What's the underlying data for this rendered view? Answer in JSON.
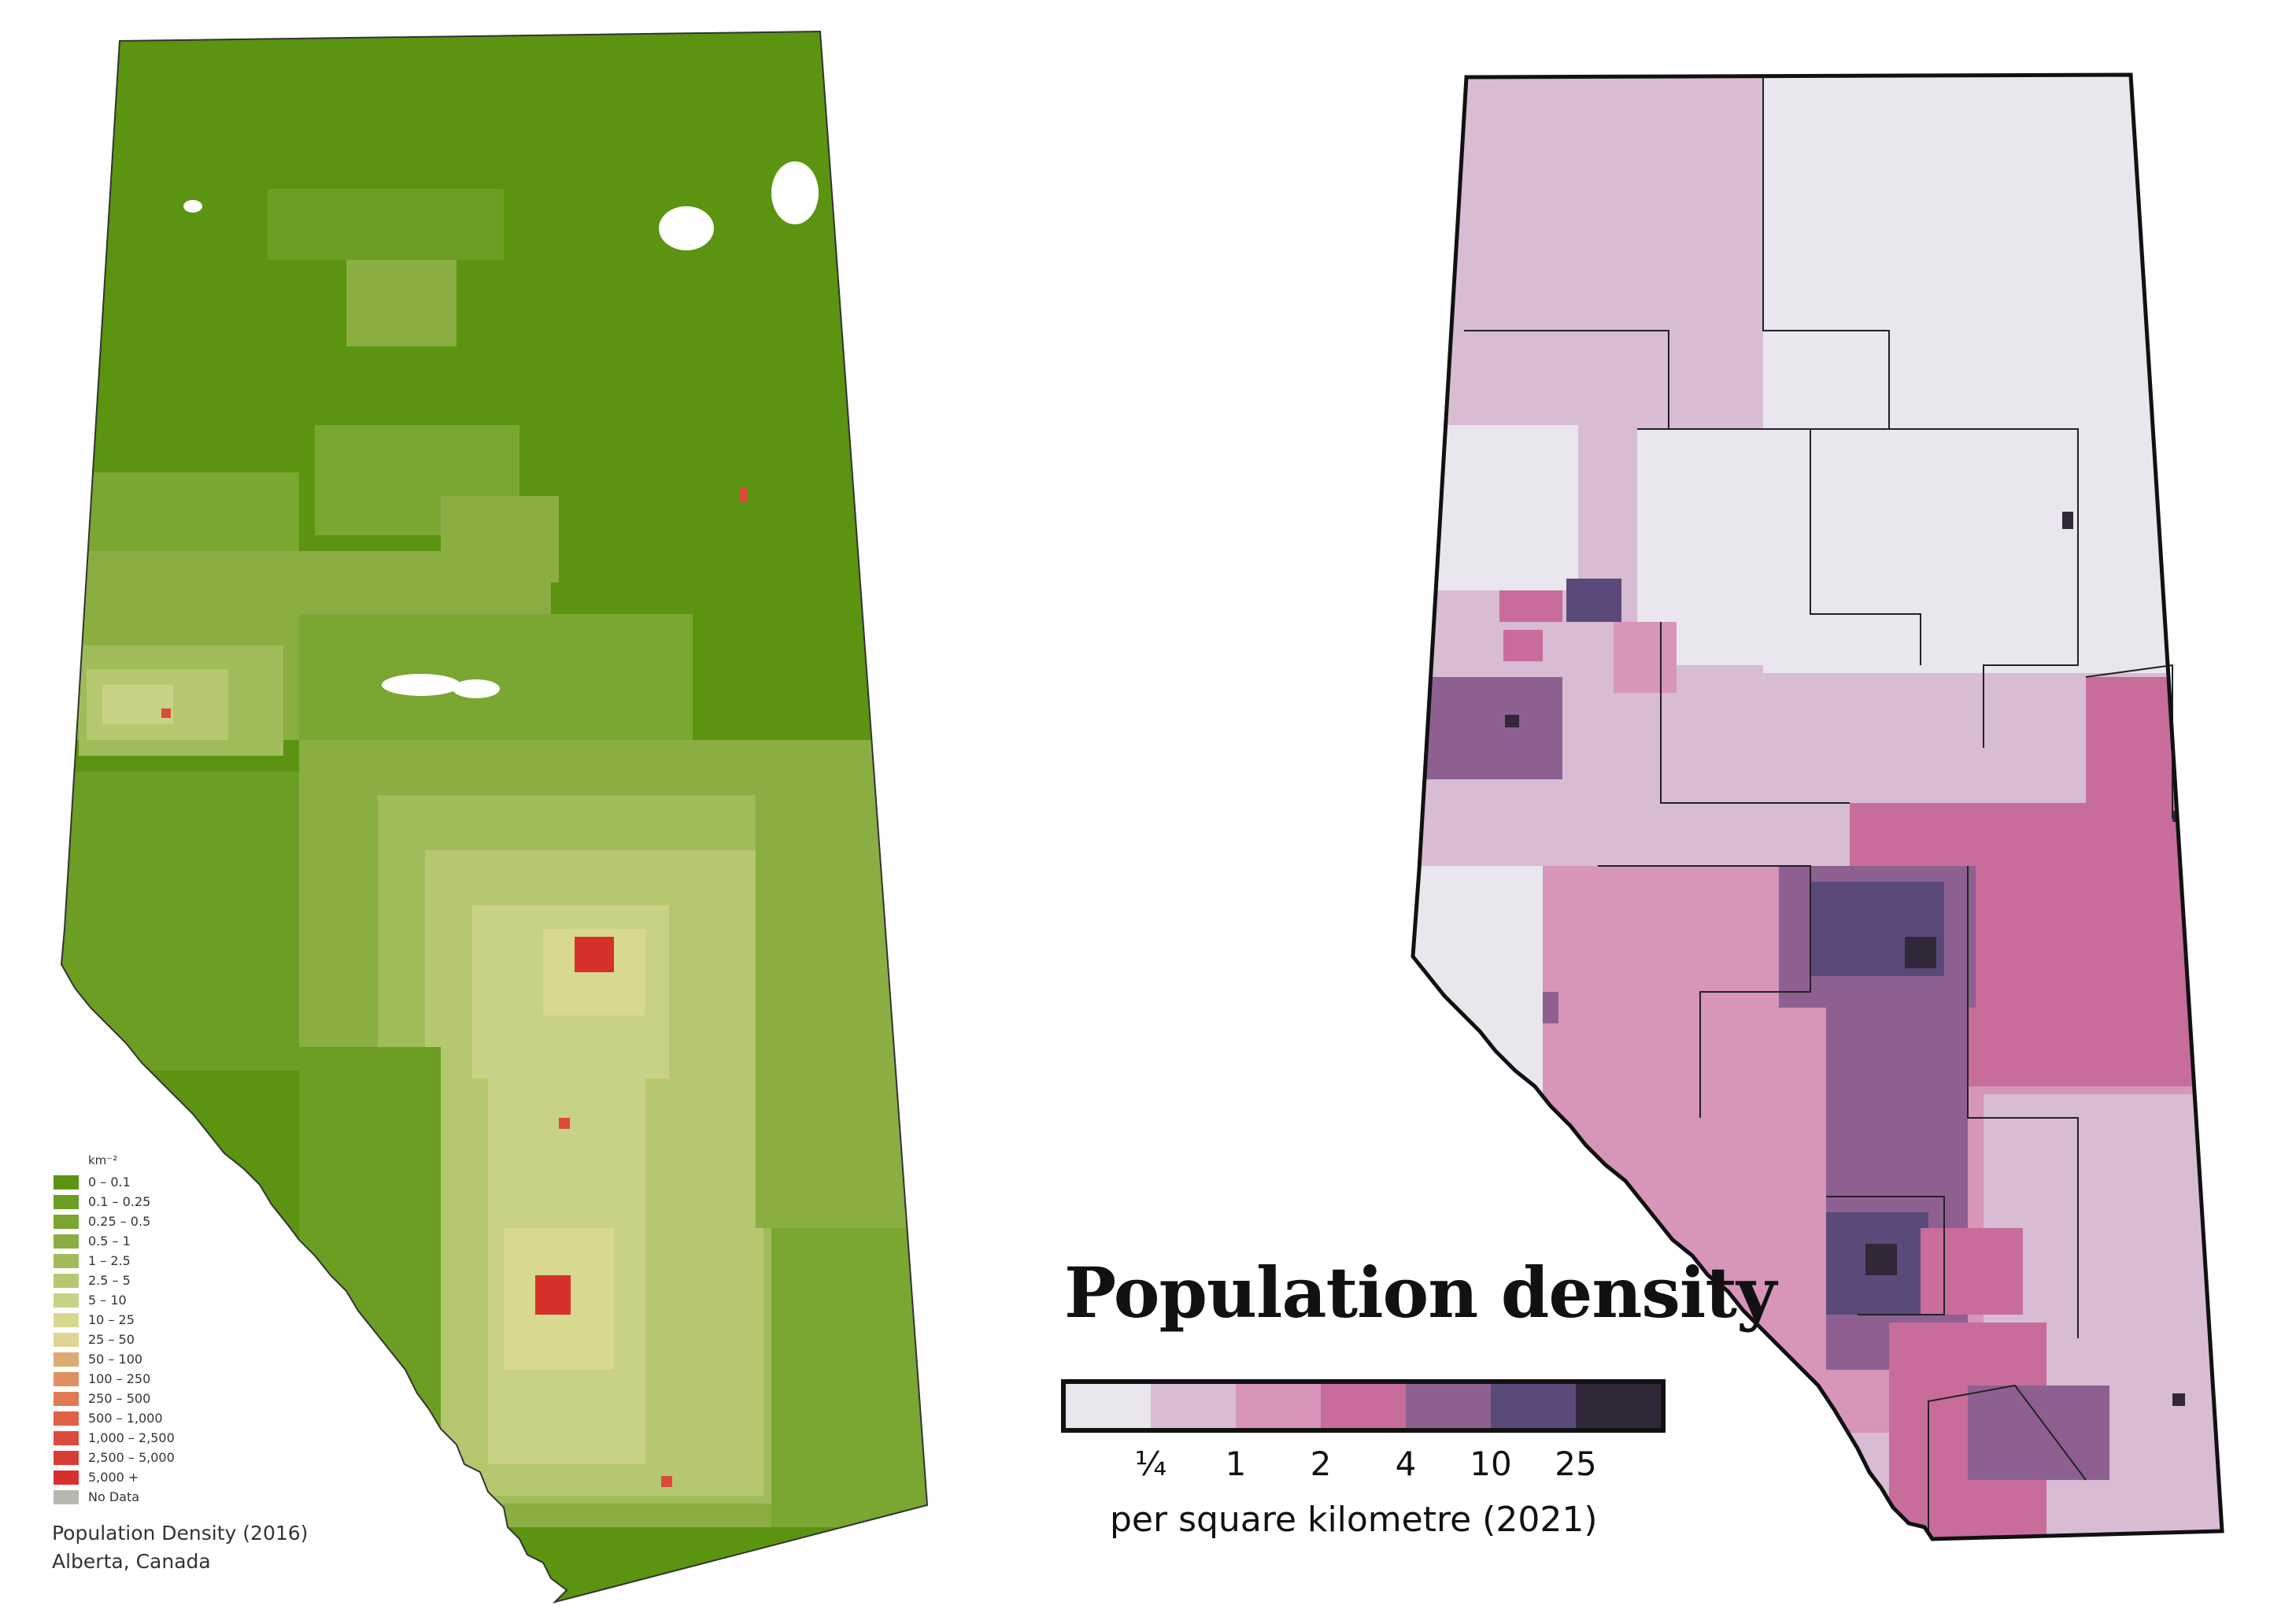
{
  "left_map": {
    "legend_unit": "km⁻²",
    "legend": [
      {
        "label": "0 – 0.1",
        "color": "#5a9410"
      },
      {
        "label": "0.1 – 0.25",
        "color": "#6b9e22"
      },
      {
        "label": "0.25 – 0.5",
        "color": "#7aa632"
      },
      {
        "label": "0.5 – 1",
        "color": "#8aae42"
      },
      {
        "label": "1 – 2.5",
        "color": "#a0bc5a"
      },
      {
        "label": "2.5 – 5",
        "color": "#b5c870"
      },
      {
        "label": "5 – 10",
        "color": "#c8d286"
      },
      {
        "label": "10 – 25",
        "color": "#d8d890"
      },
      {
        "label": "25 – 50",
        "color": "#e0d494"
      },
      {
        "label": "50 – 100",
        "color": "#dcaa72"
      },
      {
        "label": "100 – 250",
        "color": "#e0905e"
      },
      {
        "label": "250 – 500",
        "color": "#e27a52"
      },
      {
        "label": "500 – 1,000",
        "color": "#e06048"
      },
      {
        "label": "1,000 – 2,500",
        "color": "#dc4a3c"
      },
      {
        "label": "2,500 – 5,000",
        "color": "#d83c34"
      },
      {
        "label": "5,000 +",
        "color": "#d6302c"
      },
      {
        "label": "No Data",
        "color": "#b8b8b0"
      }
    ],
    "caption_line1": "Population Density (2016)",
    "caption_line2": "Alberta, Canada"
  },
  "right_map": {
    "title": "Population density",
    "scale_colors": [
      "#e9e6ee",
      "#d8bcd4",
      "#d695b9",
      "#c86c9c",
      "#8e6092",
      "#5a4a7a",
      "#302838"
    ],
    "tick_labels": [
      "¼",
      "1",
      "2",
      "4",
      "10",
      "25"
    ],
    "unit_label": "per square kilometre (2021)"
  }
}
